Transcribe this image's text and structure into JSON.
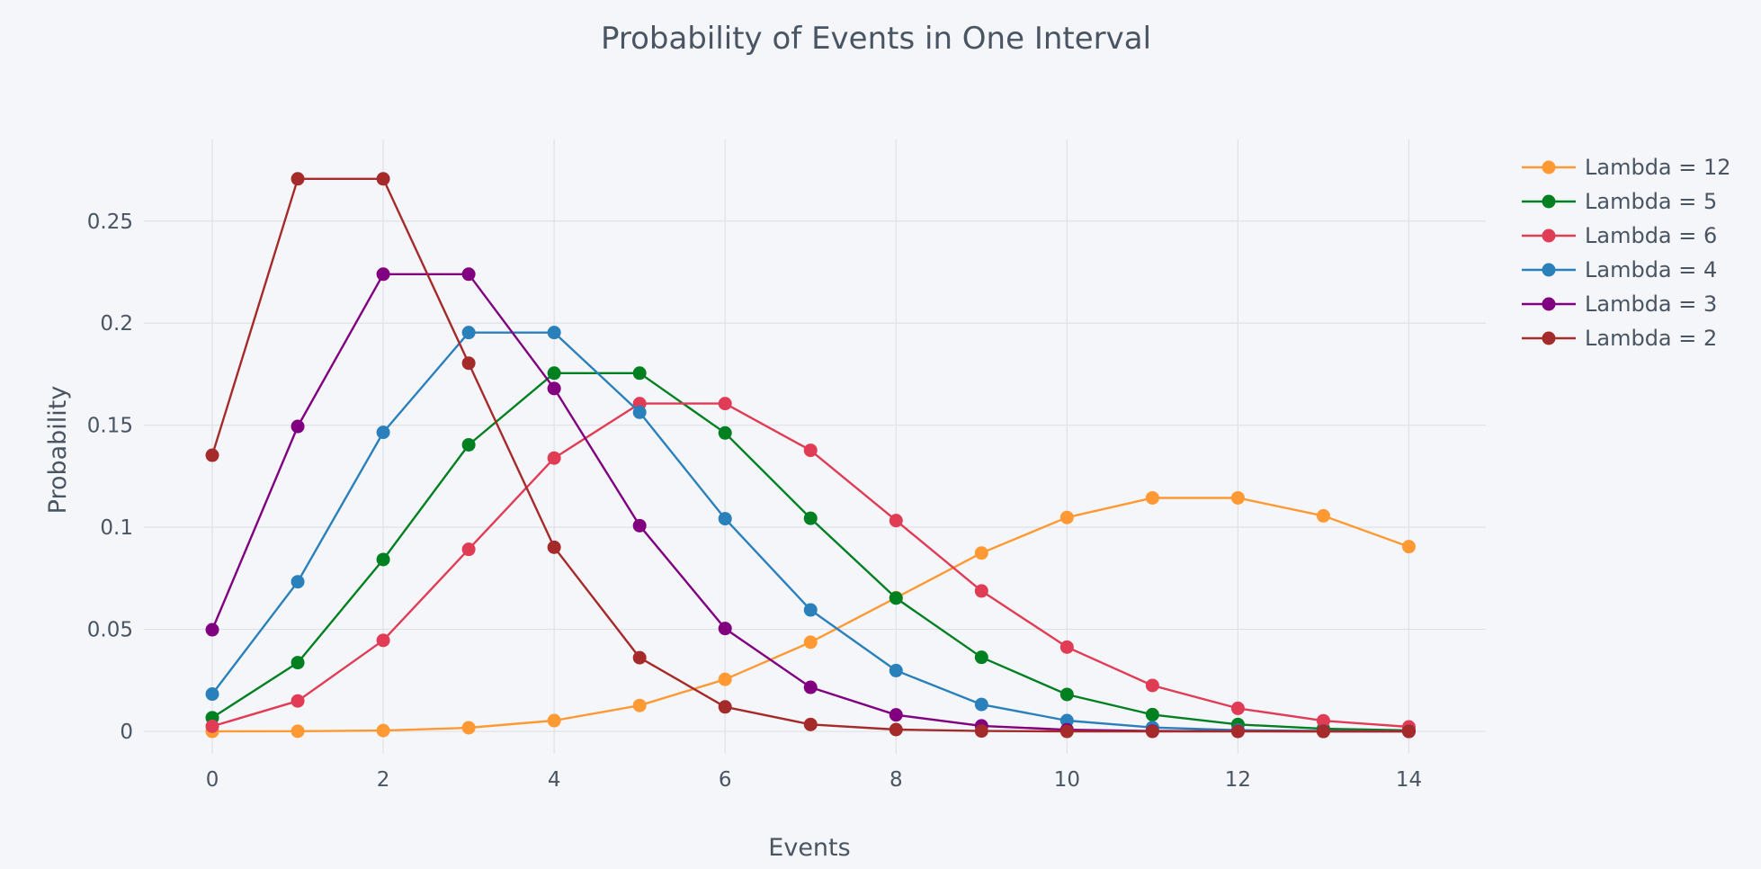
{
  "chart_data": {
    "type": "line",
    "title": "Probability of Events in One Interval",
    "xlabel": "Events",
    "ylabel": "Probability",
    "xlim": [
      -0.8,
      14.9
    ],
    "ylim": [
      -0.011,
      0.29
    ],
    "xticks": [
      0,
      2,
      4,
      6,
      8,
      10,
      12,
      14
    ],
    "xtick_labels": [
      "0",
      "2",
      "4",
      "6",
      "8",
      "10",
      "12",
      "14"
    ],
    "yticks": [
      0,
      0.05,
      0.1,
      0.15,
      0.2,
      0.25
    ],
    "ytick_labels": [
      "0",
      "0.05",
      "0.1",
      "0.15",
      "0.2",
      "0.25"
    ],
    "grid": true,
    "legend_position": "top-right",
    "x": [
      0,
      1,
      2,
      3,
      4,
      5,
      6,
      7,
      8,
      9,
      10,
      11,
      12,
      13,
      14
    ],
    "series": [
      {
        "name": "Lambda = 12",
        "color": "#ff9933",
        "values": [
          0.0,
          0.0001,
          0.0004,
          0.0018,
          0.0053,
          0.0127,
          0.0255,
          0.0437,
          0.0655,
          0.0874,
          0.1048,
          0.1144,
          0.1144,
          0.1056,
          0.0905
        ]
      },
      {
        "name": "Lambda = 5",
        "color": "#008021",
        "values": [
          0.0067,
          0.0337,
          0.0842,
          0.1404,
          0.1755,
          0.1755,
          0.1462,
          0.1044,
          0.0653,
          0.0363,
          0.0181,
          0.0082,
          0.0034,
          0.0013,
          0.0005
        ]
      },
      {
        "name": "Lambda = 6",
        "color": "#e03c55",
        "values": [
          0.0025,
          0.0149,
          0.0446,
          0.0892,
          0.1339,
          0.1606,
          0.1606,
          0.1377,
          0.1033,
          0.0688,
          0.0413,
          0.0225,
          0.0113,
          0.0052,
          0.0022
        ]
      },
      {
        "name": "Lambda = 4",
        "color": "#2a80bb",
        "values": [
          0.0183,
          0.0733,
          0.1465,
          0.1954,
          0.1954,
          0.1563,
          0.1042,
          0.0595,
          0.0298,
          0.0132,
          0.0053,
          0.0019,
          0.0006,
          0.0002,
          0.0001
        ]
      },
      {
        "name": "Lambda = 3",
        "color": "#800080",
        "values": [
          0.0498,
          0.1494,
          0.224,
          0.224,
          0.168,
          0.1008,
          0.0504,
          0.0216,
          0.0081,
          0.0027,
          0.0008,
          0.0002,
          0.0001,
          0.0,
          0.0
        ]
      },
      {
        "name": "Lambda = 2",
        "color": "#a52a2a",
        "values": [
          0.1353,
          0.2707,
          0.2707,
          0.1804,
          0.0902,
          0.0361,
          0.012,
          0.0034,
          0.0009,
          0.0002,
          0.0,
          0.0,
          0.0,
          0.0,
          0.0
        ]
      }
    ]
  }
}
